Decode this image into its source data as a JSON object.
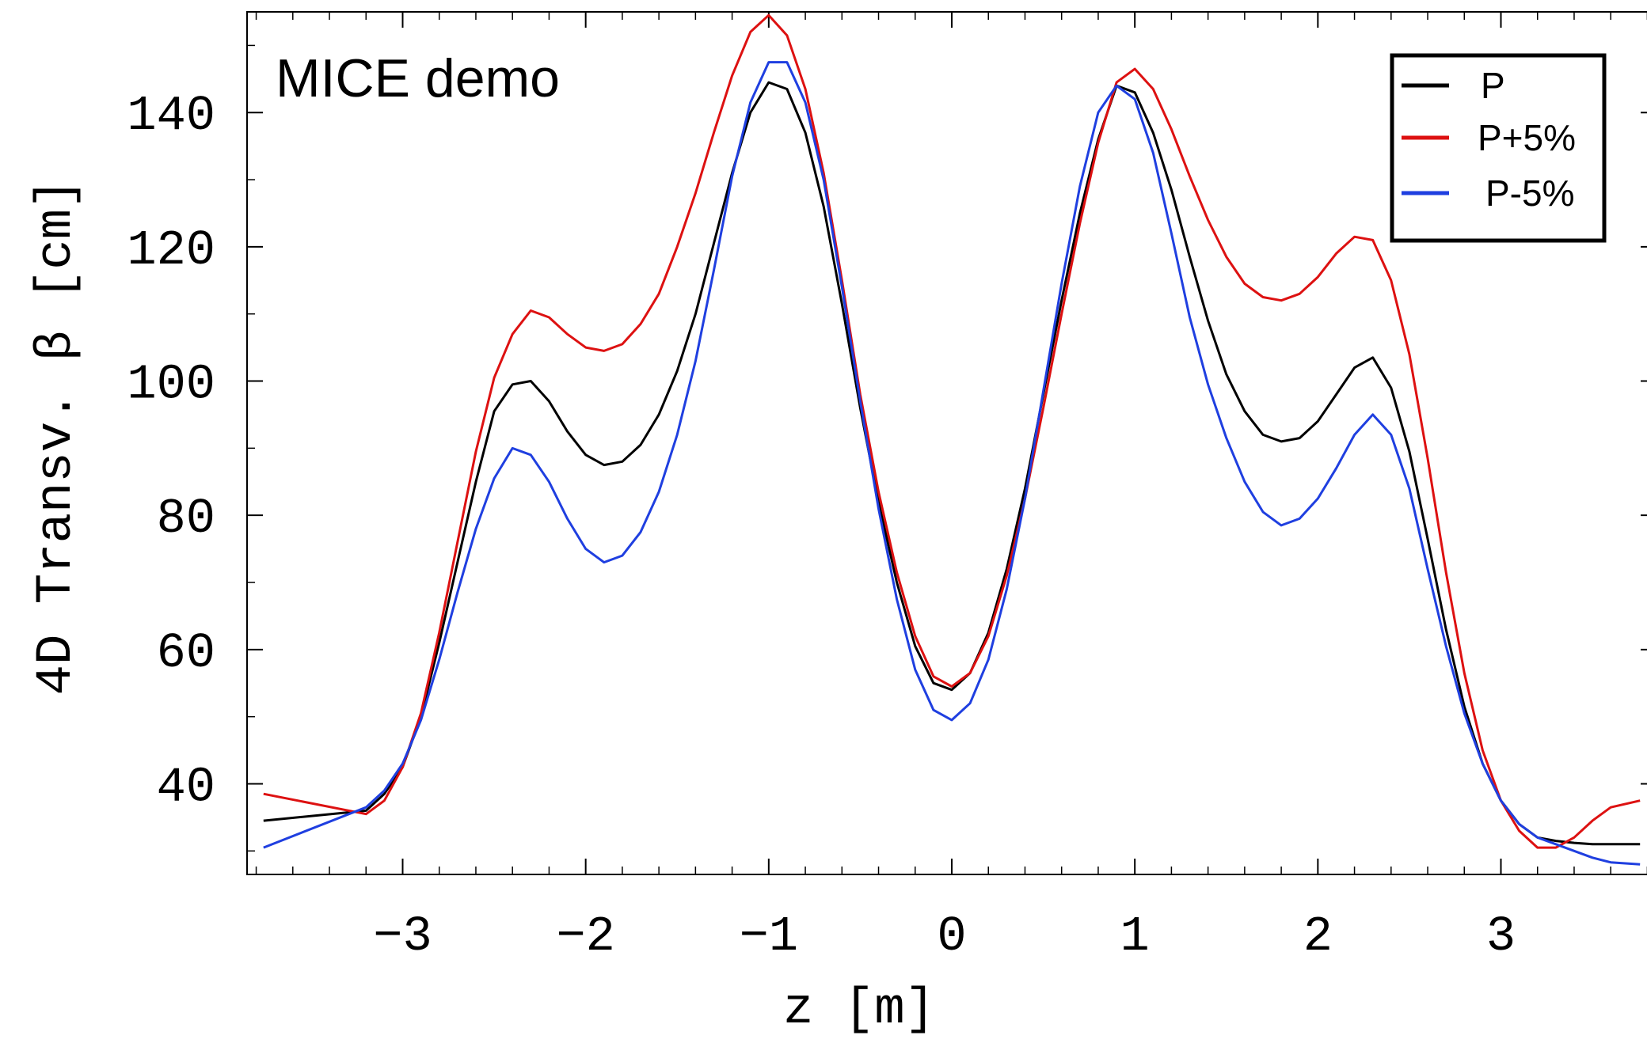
{
  "chart_data": {
    "type": "line",
    "title": "",
    "annotation": "MICE demo",
    "xlabel": "z [m]",
    "ylabel": "4D Transv. β [cm]",
    "xlim": [
      -3.85,
      3.85
    ],
    "ylim": [
      26.5,
      155
    ],
    "x_ticks": [
      -3,
      -2,
      -1,
      0,
      1,
      2,
      3
    ],
    "x_tick_labels": [
      "−3",
      "−2",
      "−1",
      "0",
      "1",
      "2",
      "3"
    ],
    "y_ticks": [
      40,
      60,
      80,
      100,
      120,
      140
    ],
    "y_tick_labels": [
      "40",
      "60",
      "80",
      "100",
      "120",
      "140"
    ],
    "grid": false,
    "legend_position": "top-right",
    "x": [
      -3.76,
      -3.2,
      -3.1,
      -3.0,
      -2.9,
      -2.8,
      -2.7,
      -2.6,
      -2.5,
      -2.4,
      -2.3,
      -2.2,
      -2.1,
      -2.0,
      -1.9,
      -1.8,
      -1.7,
      -1.6,
      -1.5,
      -1.4,
      -1.3,
      -1.2,
      -1.1,
      -1.0,
      -0.9,
      -0.8,
      -0.7,
      -0.6,
      -0.5,
      -0.4,
      -0.3,
      -0.2,
      -0.1,
      0.0,
      0.1,
      0.2,
      0.3,
      0.4,
      0.5,
      0.6,
      0.7,
      0.8,
      0.9,
      1.0,
      1.1,
      1.2,
      1.3,
      1.4,
      1.5,
      1.6,
      1.7,
      1.8,
      1.9,
      2.0,
      2.1,
      2.2,
      2.3,
      2.4,
      2.5,
      2.6,
      2.7,
      2.8,
      2.9,
      3.0,
      3.1,
      3.2,
      3.3,
      3.4,
      3.5,
      3.6,
      3.76
    ],
    "series": [
      {
        "name": "P",
        "color": "#000000",
        "values": [
          34.5,
          36.0,
          38.5,
          42.5,
          50.0,
          61.0,
          73.0,
          85.0,
          95.5,
          99.5,
          100.0,
          97.0,
          92.5,
          89.0,
          87.5,
          88.0,
          90.5,
          95.0,
          101.5,
          110.0,
          120.5,
          131.0,
          140.0,
          144.5,
          143.5,
          137.0,
          126.0,
          111.5,
          96.0,
          82.0,
          70.0,
          60.5,
          55.0,
          54.0,
          56.5,
          62.5,
          72.0,
          84.0,
          98.0,
          112.0,
          125.0,
          136.0,
          144.0,
          143.0,
          137.0,
          128.5,
          118.5,
          109.0,
          101.0,
          95.5,
          92.0,
          91.0,
          91.5,
          94.0,
          98.0,
          102.0,
          103.5,
          99.0,
          89.5,
          76.5,
          63.0,
          51.5,
          43.0,
          37.5,
          34.0,
          32.0,
          31.5,
          31.2,
          31.0,
          31.0,
          31.0
        ]
      },
      {
        "name": "P+5%",
        "color": "#dd1111",
        "values": [
          38.5,
          35.5,
          37.5,
          42.5,
          50.5,
          62.5,
          76.0,
          89.5,
          100.5,
          107.0,
          110.5,
          109.5,
          107.0,
          105.0,
          104.5,
          105.5,
          108.5,
          113.0,
          120.0,
          128.0,
          137.0,
          145.5,
          152.0,
          154.5,
          151.5,
          143.5,
          131.0,
          115.0,
          98.0,
          83.5,
          71.5,
          62.0,
          56.0,
          54.5,
          56.5,
          62.0,
          71.0,
          82.5,
          96.0,
          110.0,
          123.5,
          135.5,
          144.5,
          146.5,
          143.5,
          137.5,
          130.5,
          124.0,
          118.5,
          114.5,
          112.5,
          112.0,
          113.0,
          115.5,
          119.0,
          121.5,
          121.0,
          115.0,
          104.0,
          88.5,
          71.5,
          56.5,
          45.0,
          37.5,
          33.0,
          30.5,
          30.5,
          32.0,
          34.5,
          36.5,
          37.5
        ]
      },
      {
        "name": "P-5%",
        "color": "#1f3fe0",
        "values": [
          30.5,
          36.5,
          39.0,
          43.0,
          49.5,
          58.5,
          68.5,
          78.0,
          85.5,
          90.0,
          89.0,
          85.0,
          79.5,
          75.0,
          73.0,
          74.0,
          77.5,
          83.5,
          92.0,
          103.0,
          116.5,
          130.5,
          141.5,
          147.5,
          147.5,
          141.5,
          130.0,
          114.0,
          97.0,
          81.0,
          67.5,
          57.0,
          51.0,
          49.5,
          52.0,
          58.5,
          69.0,
          82.5,
          98.5,
          114.5,
          129.0,
          140.0,
          144.0,
          142.0,
          134.0,
          122.0,
          109.5,
          99.5,
          91.5,
          85.0,
          80.5,
          78.5,
          79.5,
          82.5,
          87.0,
          92.0,
          95.0,
          92.0,
          84.0,
          72.0,
          60.5,
          50.5,
          43.0,
          37.5,
          34.0,
          32.0,
          31.0,
          30.0,
          29.0,
          28.3,
          28.0
        ]
      }
    ]
  }
}
